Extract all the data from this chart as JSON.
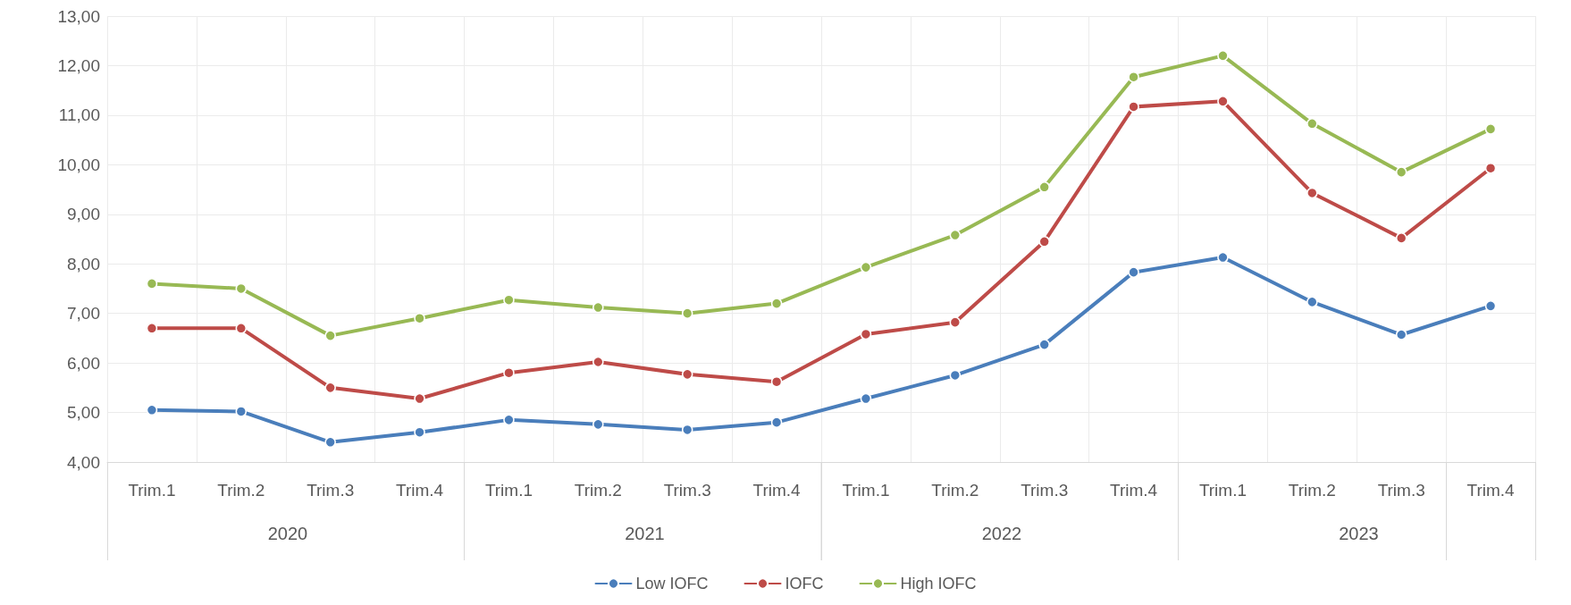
{
  "chart_data": {
    "type": "line",
    "categories": [
      "Trim.1",
      "Trim.2",
      "Trim.3",
      "Trim.4",
      "Trim.1",
      "Trim.2",
      "Trim.3",
      "Trim.4",
      "Trim.1",
      "Trim.2",
      "Trim.3",
      "Trim.4",
      "Trim.1",
      "Trim.2",
      "Trim.3",
      "Trim.4"
    ],
    "annotations": [
      "2020",
      "2021",
      "2022",
      "2023"
    ],
    "series": [
      {
        "name": "Low IOFC",
        "color": "#4a7ebb",
        "values": [
          5.05,
          5.02,
          4.4,
          4.6,
          4.85,
          4.76,
          4.65,
          4.8,
          5.28,
          5.75,
          6.37,
          7.83,
          8.13,
          7.23,
          6.57,
          7.15
        ]
      },
      {
        "name": "IOFC",
        "color": "#be4b48",
        "values": [
          6.7,
          6.7,
          5.5,
          5.28,
          5.8,
          6.02,
          5.77,
          5.62,
          6.58,
          6.82,
          8.45,
          11.17,
          11.28,
          9.43,
          8.52,
          9.93
        ]
      },
      {
        "name": "High IOFC",
        "color": "#98b954",
        "values": [
          7.6,
          7.5,
          6.55,
          6.9,
          7.27,
          7.12,
          7.0,
          7.2,
          7.93,
          8.58,
          9.55,
          11.77,
          12.2,
          10.83,
          9.85,
          10.72
        ]
      }
    ],
    "ylim": [
      4,
      13
    ],
    "yticks": [
      {
        "value": 4,
        "label": "4,00"
      },
      {
        "value": 5,
        "label": "5,00"
      },
      {
        "value": 6,
        "label": "6,00"
      },
      {
        "value": 7,
        "label": "7,00"
      },
      {
        "value": 8,
        "label": "8,00"
      },
      {
        "value": 9,
        "label": "9,00"
      },
      {
        "value": 10,
        "label": "10,00"
      },
      {
        "value": 11,
        "label": "11,00"
      },
      {
        "value": 12,
        "label": "12,00"
      },
      {
        "value": 13,
        "label": "13,00"
      }
    ],
    "grid": true,
    "legend": "bottom",
    "marker": "circle",
    "line_style": "solid"
  }
}
